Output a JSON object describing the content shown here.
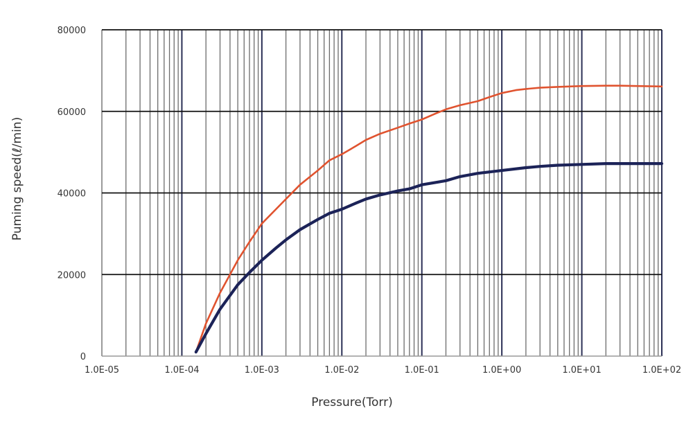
{
  "chart_data": {
    "type": "line",
    "title": "",
    "xlabel": "Pressure(Torr)",
    "ylabel": "Puming speed(ℓ/min)",
    "x_scale": "log",
    "xlim": [
      1e-05,
      100
    ],
    "ylim": [
      0,
      80000
    ],
    "x_tick_labels": [
      "1.0E-05",
      "1.0E-04",
      "1.0E-03",
      "1.0E-02",
      "1.0E-01",
      "1.0E+00",
      "1.0E+01",
      "1.0E+02"
    ],
    "y_tick_labels": [
      "0",
      "20000",
      "40000",
      "60000",
      "80000"
    ],
    "grid": true,
    "legend": "none",
    "series": [
      {
        "color": "#e0532f",
        "x": [
          0.00015,
          0.0002,
          0.0003,
          0.0005,
          0.0007,
          0.001,
          0.0015,
          0.002,
          0.003,
          0.005,
          0.007,
          0.01,
          0.015,
          0.02,
          0.03,
          0.05,
          0.07,
          0.1,
          0.15,
          0.2,
          0.3,
          0.5,
          0.7,
          1,
          1.5,
          2,
          3,
          5,
          7,
          10,
          20,
          30,
          50,
          100
        ],
        "y": [
          1000,
          8000,
          15500,
          23500,
          28000,
          32500,
          36000,
          38500,
          42000,
          45500,
          48000,
          49500,
          51500,
          53000,
          54500,
          56000,
          57000,
          58000,
          59500,
          60500,
          61500,
          62500,
          63500,
          64500,
          65200,
          65500,
          65800,
          66000,
          66100,
          66200,
          66300,
          66300,
          66200,
          66100
        ]
      },
      {
        "color": "#1c2358",
        "x": [
          0.00015,
          0.0002,
          0.0003,
          0.0005,
          0.0007,
          0.001,
          0.0015,
          0.002,
          0.003,
          0.005,
          0.007,
          0.01,
          0.015,
          0.02,
          0.03,
          0.05,
          0.07,
          0.1,
          0.2,
          0.3,
          0.5,
          1,
          2,
          3,
          5,
          10,
          20,
          50,
          100
        ],
        "y": [
          1000,
          5500,
          11500,
          17500,
          20500,
          23500,
          26500,
          28500,
          31000,
          33500,
          35000,
          36000,
          37500,
          38500,
          39500,
          40500,
          41000,
          42000,
          43000,
          44000,
          44800,
          45500,
          46200,
          46500,
          46800,
          47000,
          47200,
          47200,
          47200
        ]
      }
    ]
  }
}
